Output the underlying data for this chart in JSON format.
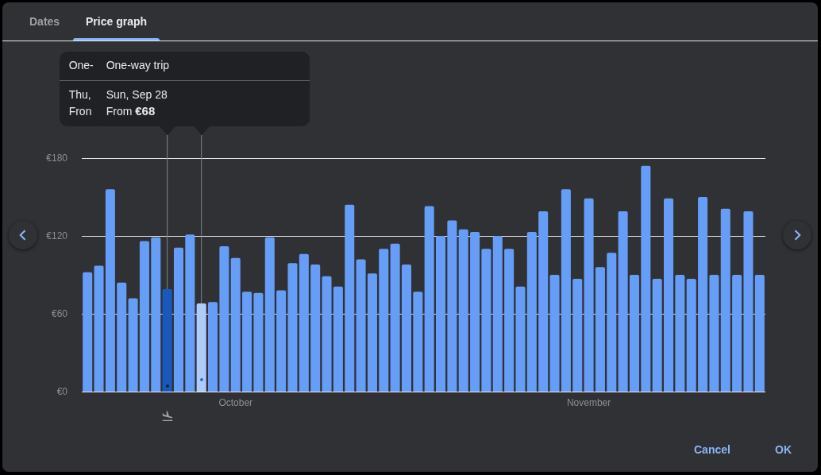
{
  "chart_data": {
    "type": "bar",
    "categories": [
      null,
      null,
      null,
      null,
      null,
      null,
      null,
      null,
      null,
      null,
      null,
      null,
      null,
      "October",
      null,
      null,
      null,
      null,
      null,
      null,
      null,
      null,
      null,
      null,
      null,
      null,
      null,
      null,
      null,
      null,
      null,
      null,
      null,
      null,
      null,
      null,
      null,
      null,
      null,
      null,
      null,
      null,
      null,
      null,
      "November",
      null,
      null,
      null,
      null,
      null,
      null,
      null,
      null,
      null,
      null,
      null,
      null,
      null,
      null,
      null
    ],
    "values": [
      92,
      97,
      156,
      84,
      72,
      116,
      119,
      79,
      111,
      121,
      68,
      69,
      112,
      103,
      77,
      76,
      119,
      78,
      99,
      106,
      98,
      89,
      81,
      144,
      102,
      91,
      110,
      114,
      98,
      77,
      143,
      120,
      132,
      125,
      123,
      110,
      120,
      110,
      81,
      123,
      139,
      90,
      156,
      87,
      149,
      96,
      107,
      139,
      90,
      174,
      87,
      149,
      90,
      87,
      150,
      90,
      141,
      90,
      139,
      90
    ],
    "colors": [
      "#669df6",
      "#669df6",
      "#669df6",
      "#669df6",
      "#669df6",
      "#669df6",
      "#669df6",
      "#185abc",
      "#669df6",
      "#669df6",
      "#aecbfa",
      "#669df6",
      "#669df6",
      "#669df6",
      "#669df6",
      "#669df6",
      "#669df6",
      "#669df6",
      "#669df6",
      "#669df6",
      "#669df6",
      "#669df6",
      "#669df6",
      "#669df6",
      "#669df6",
      "#669df6",
      "#669df6",
      "#669df6",
      "#669df6",
      "#669df6",
      "#669df6",
      "#669df6",
      "#669df6",
      "#669df6",
      "#669df6",
      "#669df6",
      "#669df6",
      "#669df6",
      "#669df6",
      "#669df6",
      "#669df6",
      "#669df6",
      "#669df6",
      "#669df6",
      "#669df6",
      "#669df6",
      "#669df6",
      "#669df6",
      "#669df6",
      "#669df6",
      "#669df6",
      "#669df6",
      "#669df6",
      "#669df6",
      "#669df6",
      "#669df6",
      "#669df6",
      "#669df6",
      "#669df6",
      "#669df6"
    ],
    "ylim": [
      0,
      180
    ],
    "yticks": [
      {
        "value": 0,
        "label": "€0"
      },
      {
        "value": 60,
        "label": "€60"
      },
      {
        "value": 120,
        "label": "€120"
      },
      {
        "value": 180,
        "label": "€180"
      }
    ],
    "grid": "y",
    "annotations": [
      "Dates",
      "Price graph",
      "One-",
      "Thu,",
      "Fron",
      "One-way trip",
      "Sun, Sep 28",
      "From €68",
      "Cancel",
      "OK"
    ]
  }
}
